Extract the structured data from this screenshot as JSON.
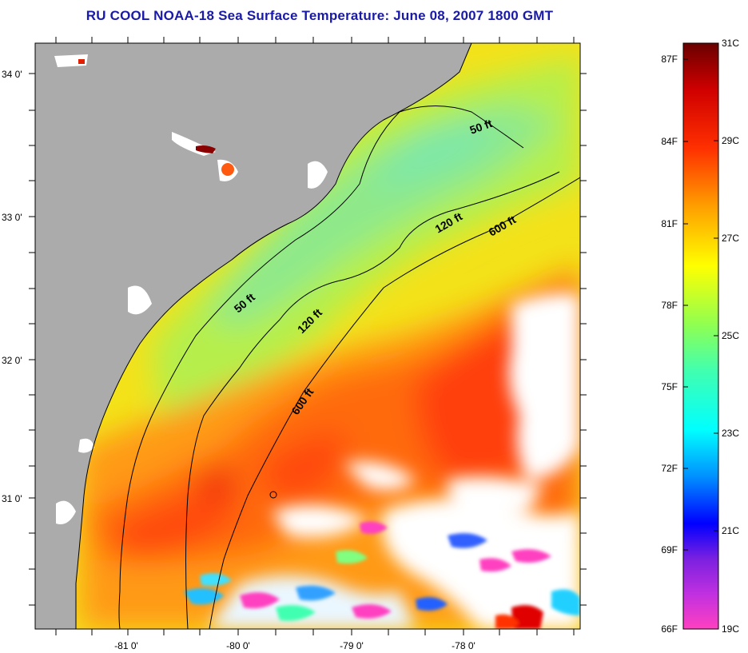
{
  "title": "RU COOL  NOAA-18  Sea Surface Temperature:  June 08, 2007 1800 GMT",
  "map": {
    "lat_labels": [
      "34 0'",
      "33 0'",
      "32 0'",
      "31 0'"
    ],
    "lon_labels": [
      "-81 0'",
      "-80 0'",
      "-79 0'",
      "-78 0'"
    ],
    "contour_labels": [
      "50 ft",
      "120 ft",
      "600 ft",
      "50 ft",
      "120 ft",
      "600 ft"
    ],
    "colors": {
      "land": "#ababab",
      "cloud": "#ffffff",
      "coastline": "#000000"
    }
  },
  "colorbar": {
    "fahrenheit_labels": [
      "87F",
      "84F",
      "81F",
      "78F",
      "75F",
      "72F",
      "69F",
      "66F"
    ],
    "celsius_labels": [
      "31C",
      "29C",
      "27C",
      "25C",
      "23C",
      "21C",
      "19C"
    ],
    "colors": [
      "#ff40c0",
      "#a020f0",
      "#0000ff",
      "#00c8ff",
      "#00ffff",
      "#7fff7f",
      "#ffff00",
      "#ffa500",
      "#ff3000",
      "#e00000",
      "#700000"
    ]
  }
}
